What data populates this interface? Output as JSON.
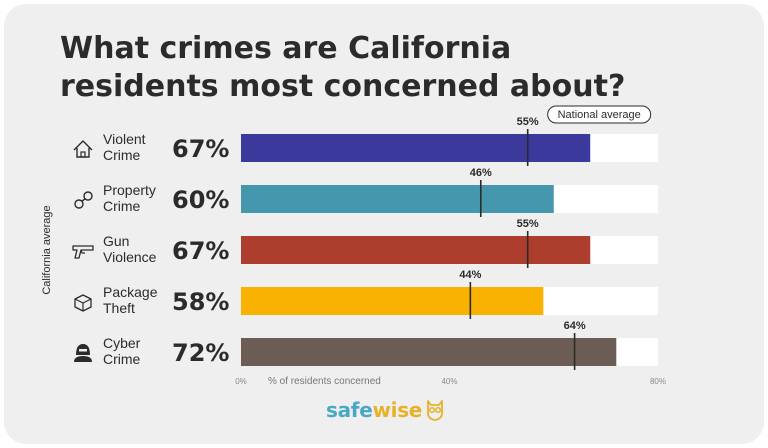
{
  "title": "What crimes are California residents most concerned about?",
  "brand": {
    "part1": "safe",
    "part2": "wise"
  },
  "colors": {
    "track": "#ffffff",
    "marker": "#2b2b2b",
    "brand_blue": "#4aa8c7",
    "brand_gold": "#e7b22a"
  },
  "chart_data": {
    "type": "bar",
    "orientation": "horizontal",
    "title": "What crimes are California residents most concerned about?",
    "ylabel": "California average",
    "xlabel": "% of residents concerned",
    "xlim": [
      0,
      80
    ],
    "xticks": [
      0,
      40,
      80
    ],
    "xtick_labels": [
      "0%",
      "40%",
      "80%"
    ],
    "reference_label": "National average",
    "categories": [
      "Violent Crime",
      "Property Crime",
      "Gun Violence",
      "Package Theft",
      "Cyber Crime"
    ],
    "category_lines": [
      [
        "Violent",
        "Crime"
      ],
      [
        "Property",
        "Crime"
      ],
      [
        "Gun",
        "Violence"
      ],
      [
        "Package",
        "Theft"
      ],
      [
        "Cyber",
        "Crime"
      ]
    ],
    "icons": [
      "house-icon",
      "handcuffs-icon",
      "gun-icon",
      "package-icon",
      "hacker-icon"
    ],
    "series": [
      {
        "name": "California average",
        "values": [
          67,
          60,
          67,
          58,
          72
        ],
        "labels": [
          "67%",
          "60%",
          "67%",
          "58%",
          "72%"
        ]
      },
      {
        "name": "National average",
        "values": [
          55,
          46,
          55,
          44,
          64
        ],
        "labels": [
          "55%",
          "46%",
          "55%",
          "44%",
          "64%"
        ]
      }
    ],
    "bar_colors": [
      "#3b3a9c",
      "#4597ad",
      "#ad3e2e",
      "#f9b200",
      "#6b5c55"
    ]
  }
}
